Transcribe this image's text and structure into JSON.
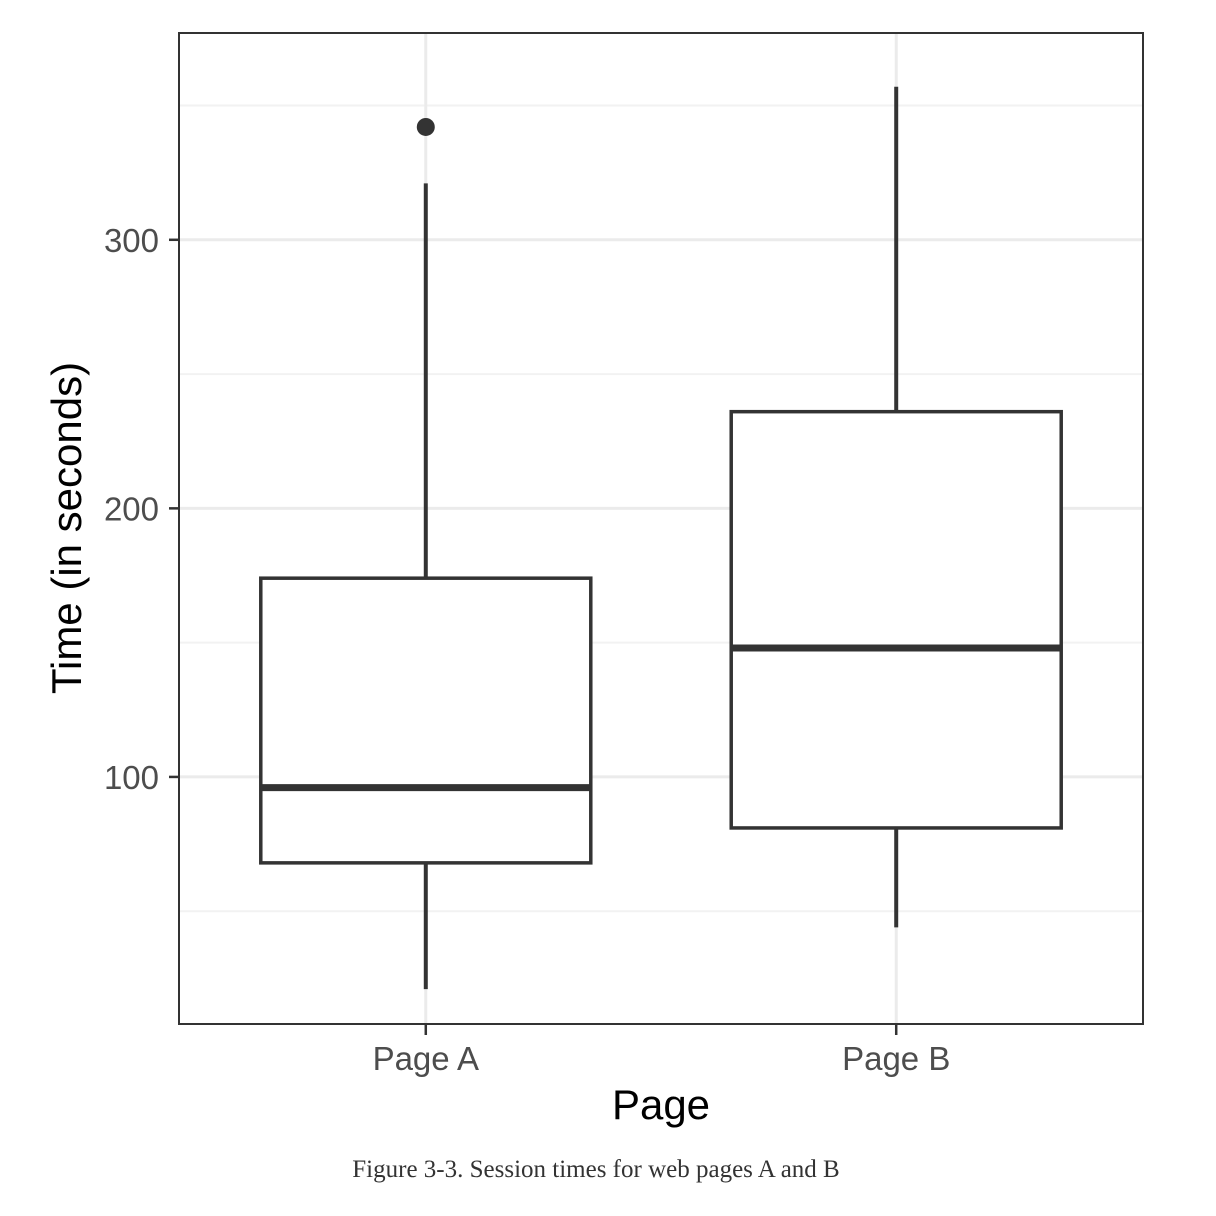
{
  "chart_data": {
    "type": "box",
    "xlabel": "Page",
    "ylabel": "Time (in seconds)",
    "ylim": [
      8,
      377
    ],
    "yticks": [
      100,
      200,
      300
    ],
    "ytick_labels": [
      "100",
      "200",
      "300"
    ],
    "minor_yticks": [
      50,
      150,
      250,
      350
    ],
    "grid": true,
    "categories": [
      "Page A",
      "Page B"
    ],
    "boxes": [
      {
        "category": "Page A",
        "whisker_low": 21,
        "q1": 68,
        "median": 96,
        "q3": 174,
        "whisker_high": 321,
        "outliers": [
          342
        ]
      },
      {
        "category": "Page B",
        "whisker_low": 44,
        "q1": 81,
        "median": 148,
        "q3": 236,
        "whisker_high": 357,
        "outliers": []
      }
    ]
  },
  "figure": {
    "caption": "Figure 3-3. Session times for web pages A and B"
  },
  "colors": {
    "box_line": "#333333",
    "grid_major": "#ebebeb",
    "grid_minor": "#f2f2f2",
    "panel_border": "#333333",
    "tick_text": "#4d4d4d"
  }
}
